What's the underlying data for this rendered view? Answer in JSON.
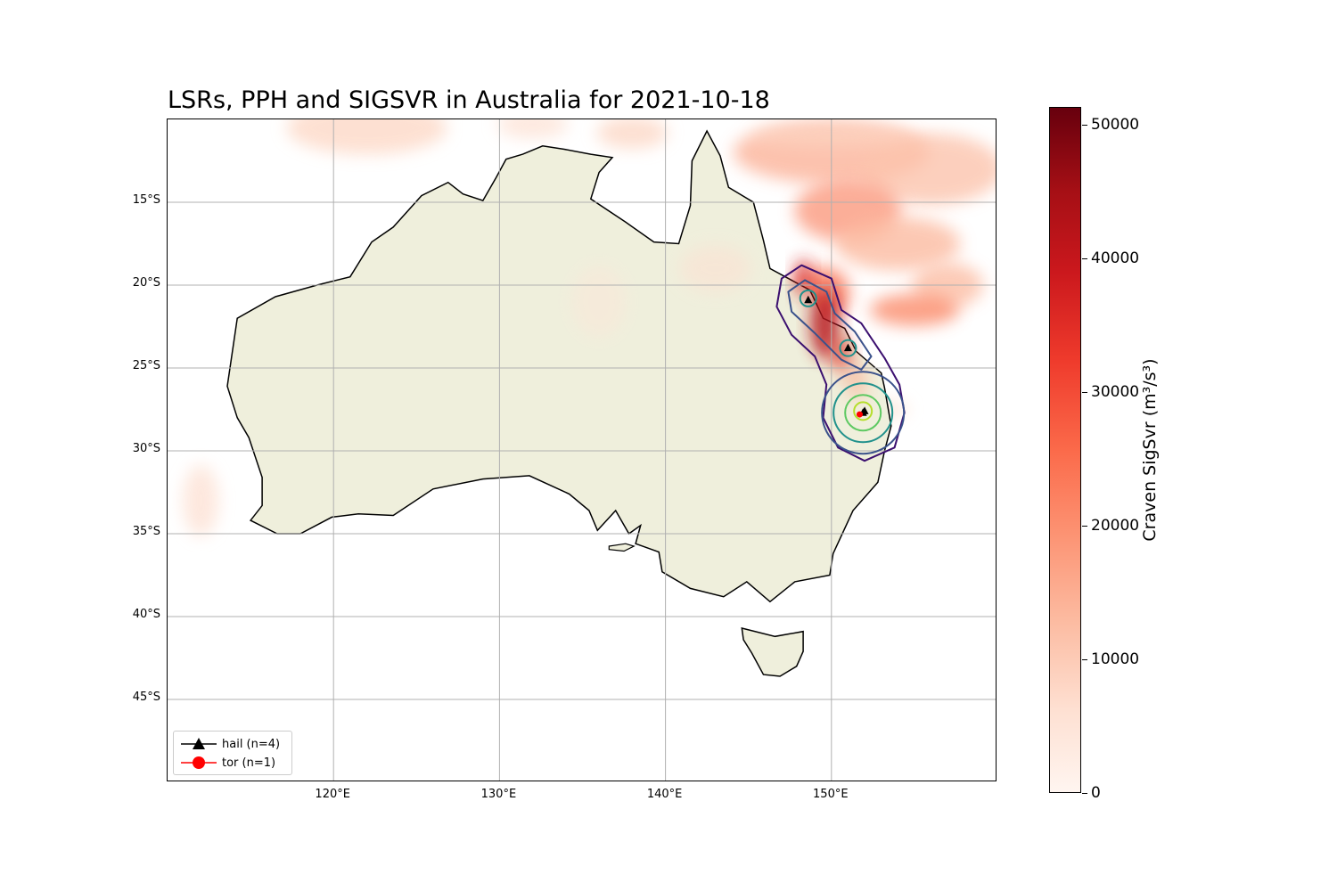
{
  "title": "LSRs, PPH and SIGSVR in Australia for 2021-10-18",
  "map": {
    "extent": {
      "lon_min": 110,
      "lon_max": 160,
      "lat_min": -50,
      "lat_max": -10
    },
    "lat_ticks": [
      {
        "value": -15,
        "label": "15°S"
      },
      {
        "value": -20,
        "label": "20°S"
      },
      {
        "value": -25,
        "label": "25°S"
      },
      {
        "value": -30,
        "label": "30°S"
      },
      {
        "value": -35,
        "label": "35°S"
      },
      {
        "value": -40,
        "label": "40°S"
      },
      {
        "value": -45,
        "label": "45°S"
      }
    ],
    "lon_ticks": [
      {
        "value": 120,
        "label": "120°E"
      },
      {
        "value": 130,
        "label": "130°E"
      },
      {
        "value": 140,
        "label": "140°E"
      },
      {
        "value": 150,
        "label": "150°E"
      }
    ],
    "grid": true,
    "land_color": "#efefdc",
    "coast_color": "#000000"
  },
  "legend": {
    "placement": "lower-left",
    "items": [
      {
        "label": "hail (n=4)",
        "marker": "triangle",
        "color": "#000000"
      },
      {
        "label": "tor (n=1)",
        "marker": "circle",
        "color": "#ff0000"
      }
    ]
  },
  "reports": [
    {
      "type": "hail",
      "lon": 148.6,
      "lat": -20.9
    },
    {
      "type": "hail",
      "lon": 151.0,
      "lat": -23.8
    },
    {
      "type": "hail",
      "lon": 152.0,
      "lat": -27.6
    },
    {
      "type": "hail",
      "lon": 151.9,
      "lat": -27.7
    },
    {
      "type": "tor",
      "lon": 151.7,
      "lat": -27.8
    }
  ],
  "pph_contours": {
    "colors": [
      "#3b0f6f",
      "#3b528b",
      "#21918c",
      "#5ec962",
      "#b5de2b"
    ]
  },
  "colorbar": {
    "label": "Craven SigSvr (m³/s³)",
    "min": 0,
    "max": 51300,
    "colormap": "Reds",
    "ticks": [
      {
        "value": 0,
        "label": "0"
      },
      {
        "value": 10000,
        "label": "10000"
      },
      {
        "value": 20000,
        "label": "20000"
      },
      {
        "value": 30000,
        "label": "30000"
      },
      {
        "value": 40000,
        "label": "40000"
      },
      {
        "value": 50000,
        "label": "50000"
      }
    ]
  }
}
